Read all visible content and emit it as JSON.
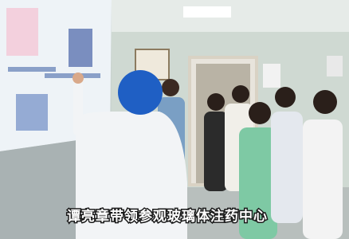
{
  "caption": "谭亮章带领参观玻璃体注药中心"
}
